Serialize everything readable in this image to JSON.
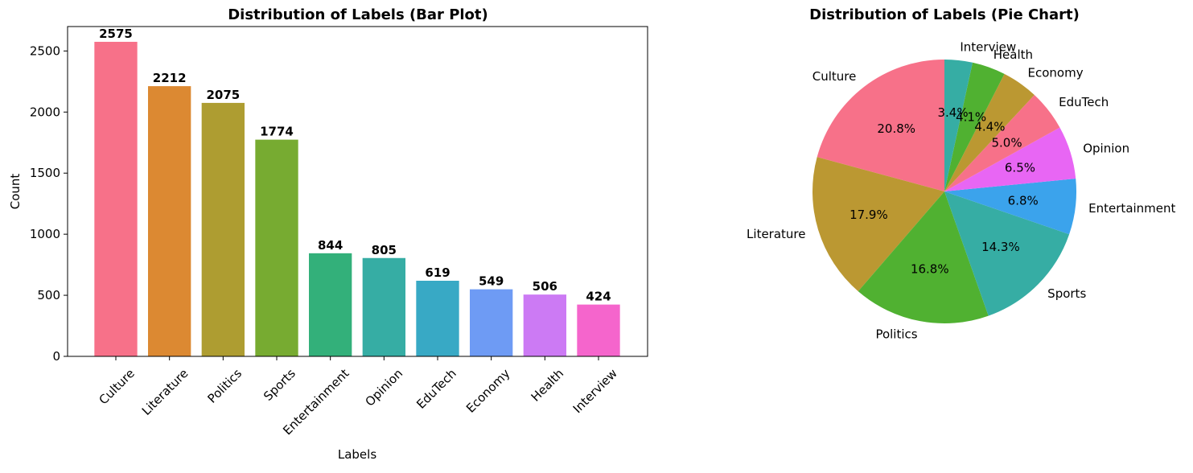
{
  "chart_data": [
    {
      "type": "bar",
      "title": "Distribution of Labels (Bar Plot)",
      "xlabel": "Labels",
      "ylabel": "Count",
      "categories": [
        "Culture",
        "Literature",
        "Politics",
        "Sports",
        "Entertainment",
        "Opinion",
        "EduTech",
        "Economy",
        "Health",
        "Interview"
      ],
      "values": [
        2575,
        2212,
        2075,
        1774,
        844,
        805,
        619,
        549,
        506,
        424
      ],
      "data_labels": [
        "2575",
        "2212",
        "2075",
        "1774",
        "844",
        "805",
        "619",
        "549",
        "506",
        "424"
      ],
      "colors": [
        "#f77189",
        "#dc8932",
        "#ae9d31",
        "#77ab31",
        "#33b07a",
        "#36ada4",
        "#38a9c5",
        "#6e9bf4",
        "#cc7af4",
        "#f565cc"
      ],
      "ylim": [
        0,
        2700
      ],
      "yticks": [
        0,
        500,
        1000,
        1500,
        2000,
        2500
      ],
      "ytick_labels": [
        "0",
        "500",
        "1000",
        "1500",
        "2000",
        "2500"
      ],
      "grid": false
    },
    {
      "type": "pie",
      "title": "Distribution of Labels (Pie Chart)",
      "labels": [
        "Culture",
        "Literature",
        "Politics",
        "Sports",
        "Entertainment",
        "Opinion",
        "EduTech",
        "Economy",
        "Health",
        "Interview"
      ],
      "values": [
        2575,
        2212,
        2075,
        1774,
        844,
        805,
        619,
        549,
        506,
        424
      ],
      "percent_labels": [
        "20.8%",
        "17.9%",
        "16.8%",
        "14.3%",
        "6.8%",
        "6.5%",
        "5.0%",
        "4.4%",
        "4.1%",
        "3.4%"
      ],
      "colors": [
        "#f77189",
        "#bb9832",
        "#50b131",
        "#36ada4",
        "#3ba3ec",
        "#e866f4",
        "#f77189",
        "#bb9832",
        "#50b131",
        "#36ada4"
      ],
      "start_angle": "90deg",
      "direction": "counterclockwise"
    }
  ]
}
